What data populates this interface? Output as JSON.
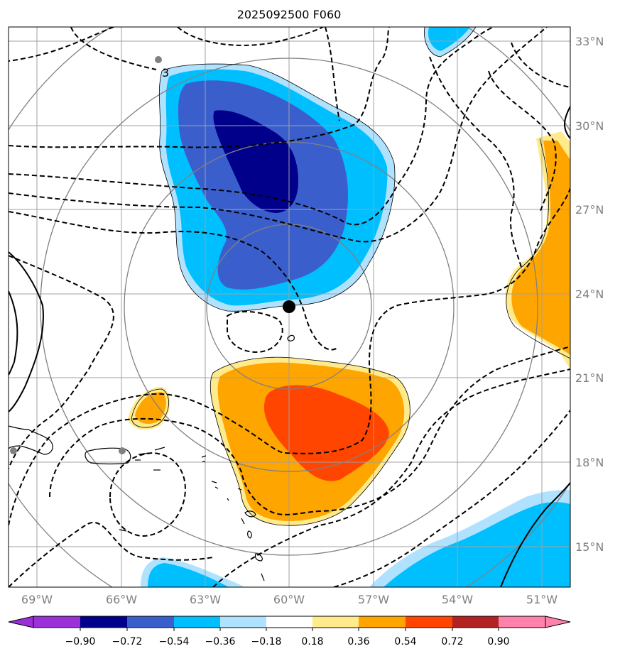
{
  "title": "2025092500 F060",
  "colors": {
    "neg_090": "#00008b",
    "neg_072": "#3a5fcd",
    "neg_054": "#00bfff",
    "neg_036": "#b0e2ff",
    "pos_036": "#ffa500",
    "pos_054": "#ff4500",
    "pos_018": "#ffeb8c",
    "gridline": "#a0a0a0",
    "range_ring": "#808080",
    "contour": "#000000"
  },
  "longitude_labels": [
    "69°W",
    "66°W",
    "63°W",
    "60°W",
    "57°W",
    "54°W",
    "51°W"
  ],
  "latitude_labels": [
    "33°N",
    "30°N",
    "27°N",
    "24°N",
    "21°N",
    "18°N",
    "15°N"
  ],
  "contour_label": "3",
  "storm_center": {
    "lon": -60.0,
    "lat": 23.5
  },
  "colorbar": {
    "labels": [
      "−0.90",
      "−0.72",
      "−0.54",
      "−0.36",
      "−0.18",
      "0.18",
      "0.36",
      "0.54",
      "0.72",
      "0.90"
    ],
    "bins": [
      "#9b30d9",
      "#00008b",
      "#3a5fcd",
      "#00bfff",
      "#b0e2ff",
      "#ffffff",
      "#ffeb8c",
      "#ffa500",
      "#ff4500",
      "#b22222",
      "#ff82ab",
      "#ff82ab"
    ]
  }
}
